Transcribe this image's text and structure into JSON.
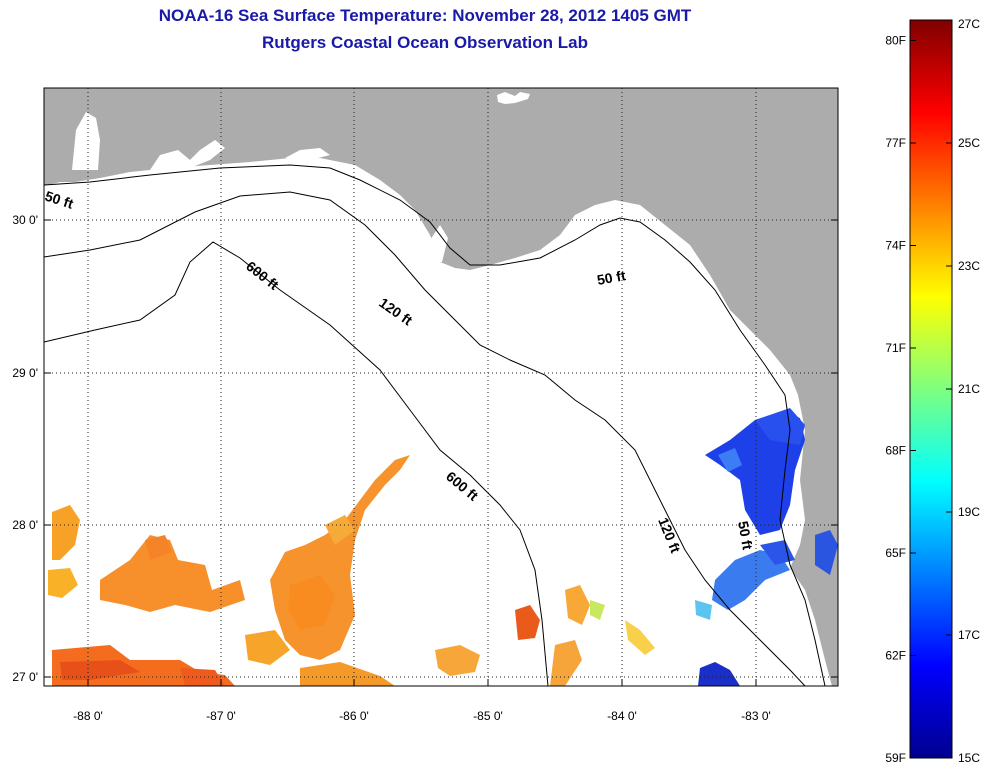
{
  "title": "NOAA-16 Sea Surface Temperature:  November 28, 2012 1405 GMT",
  "subtitle": "Rutgers Coastal Ocean Observation Lab",
  "map": {
    "lon_ticks": [
      "-88 0'",
      "-87 0'",
      "-86 0'",
      "-85 0'",
      "-84 0'",
      "-83 0'"
    ],
    "lat_ticks": [
      "30 0'",
      "29 0'",
      "28 0'",
      "27 0'"
    ],
    "contour_labels": {
      "c50_west": "50 ft",
      "c50_east": "50 ft",
      "c50_south": "50 ft",
      "c120_north": "120 ft",
      "c120_south": "120 ft",
      "c600_north": "600 ft",
      "c600_south": "600 ft"
    },
    "colors": {
      "land": "#acacac",
      "ocean_nodata": "#ffffff",
      "title": "#1a1aa8"
    }
  },
  "colorbar": {
    "fahrenheit": [
      "80F",
      "77F",
      "74F",
      "71F",
      "68F",
      "65F",
      "62F",
      "59F"
    ],
    "celsius": [
      "27C",
      "25C",
      "23C",
      "21C",
      "19C",
      "17C",
      "15C"
    ],
    "range_c": [
      15,
      27
    ]
  }
}
